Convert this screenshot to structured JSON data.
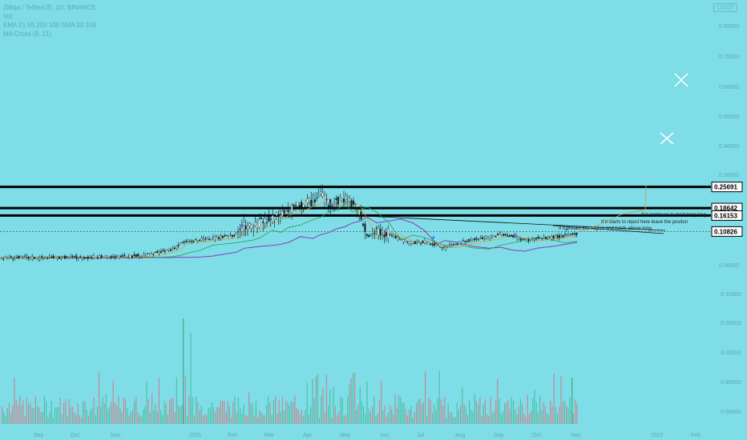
{
  "legend": {
    "symbol": "Zilliqa / TetherUS, 1D, BINANCE",
    "volume": "Vol",
    "ema": "EMA 21 55 200 100 SMA 50 100",
    "macross": "MA Cross (9, 21)"
  },
  "currency_badge": "USDT",
  "chart_data": {
    "type": "candlestick",
    "title": "Zilliqa / TetherUS, 1D, BINANCE",
    "y_ticks": [
      "0.80000",
      "0.70000",
      "0.60000",
      "0.50000",
      "0.40000",
      "0.30000",
      "0.00000",
      "-0.10000",
      "-0.20000",
      "-0.30000",
      "-0.40000",
      "-0.50000"
    ],
    "x_ticks": [
      "Sep",
      "Oct",
      "Nov",
      "2021",
      "Feb",
      "Mar",
      "Apr",
      "May",
      "Jun",
      "Jul",
      "Aug",
      "Sep",
      "Oct",
      "Nov",
      "2022",
      "Feb"
    ],
    "price_levels": [
      {
        "value": 0.25691,
        "label": "0.25691"
      },
      {
        "value": 0.18642,
        "label": "0.18642"
      },
      {
        "value": 0.16153,
        "label": "0.16153"
      },
      {
        "value": 0.10826,
        "label": "0.10826"
      }
    ],
    "price_path": [
      [
        0,
        0.02
      ],
      [
        20,
        0.022
      ],
      [
        40,
        0.021
      ],
      [
        60,
        0.022
      ],
      [
        80,
        0.023
      ],
      [
        100,
        0.022
      ],
      [
        120,
        0.024
      ],
      [
        140,
        0.023
      ],
      [
        160,
        0.025
      ],
      [
        180,
        0.03
      ],
      [
        200,
        0.04
      ],
      [
        215,
        0.05
      ],
      [
        225,
        0.07
      ],
      [
        235,
        0.075
      ],
      [
        250,
        0.08
      ],
      [
        265,
        0.085
      ],
      [
        280,
        0.09
      ],
      [
        295,
        0.1
      ],
      [
        305,
        0.13
      ],
      [
        315,
        0.12
      ],
      [
        325,
        0.14
      ],
      [
        340,
        0.15
      ],
      [
        350,
        0.17
      ],
      [
        360,
        0.18
      ],
      [
        375,
        0.2
      ],
      [
        390,
        0.21
      ],
      [
        400,
        0.23
      ],
      [
        410,
        0.2
      ],
      [
        420,
        0.21
      ],
      [
        430,
        0.22
      ],
      [
        440,
        0.2
      ],
      [
        450,
        0.16
      ],
      [
        458,
        0.09
      ],
      [
        470,
        0.11
      ],
      [
        485,
        0.1
      ],
      [
        500,
        0.08
      ],
      [
        515,
        0.07
      ],
      [
        530,
        0.075
      ],
      [
        545,
        0.06
      ],
      [
        555,
        0.055
      ],
      [
        570,
        0.07
      ],
      [
        590,
        0.08
      ],
      [
        610,
        0.09
      ],
      [
        625,
        0.1
      ],
      [
        640,
        0.09
      ],
      [
        655,
        0.08
      ],
      [
        670,
        0.085
      ],
      [
        690,
        0.09
      ],
      [
        705,
        0.095
      ],
      [
        720,
        0.1
      ]
    ],
    "volume_levels": [
      0.4,
      0.15,
      0.6,
      0.1,
      0.35
    ],
    "annotations": [
      "If it continues to hold long long",
      "If it starts to reject here leave the positon",
      "If it breaks this region and holds above long."
    ]
  }
}
